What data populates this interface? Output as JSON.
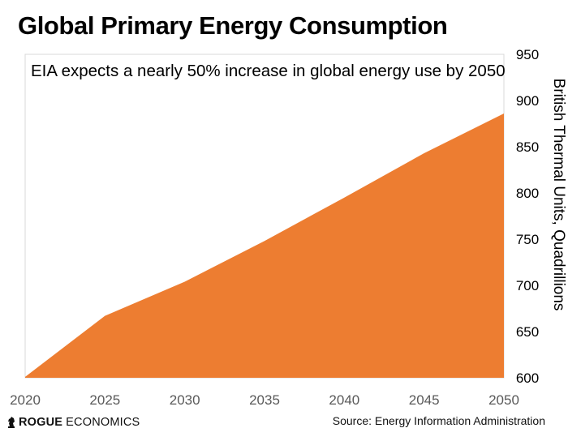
{
  "header": {
    "title": "Global Primary Energy Consumption"
  },
  "footer": {
    "brand_bold": "ROGUE",
    "brand_regular": "ECONOMICS",
    "source": "Source: Energy Information Administration"
  },
  "colors": {
    "area_fill": "#ED7D31",
    "x_tick_color": "#595959",
    "y_tick_color": "#000000",
    "plot_border": "#D9D9D9"
  },
  "chart_data": {
    "type": "area",
    "title": "Global Primary Energy Consumption",
    "subtitle": "EIA expects a nearly 50% increase in global energy use by 2050",
    "xlabel": "",
    "ylabel": "British Thermal Units, Quadrillions",
    "x": [
      2020,
      2025,
      2030,
      2035,
      2040,
      2045,
      2050
    ],
    "values": [
      601,
      667,
      704,
      748,
      795,
      843,
      886
    ],
    "xlim": [
      2020,
      2050
    ],
    "ylim": [
      600,
      950
    ],
    "x_ticks": [
      "2020",
      "2025",
      "2030",
      "2035",
      "2040",
      "2045",
      "2050"
    ],
    "y_ticks": [
      "600",
      "650",
      "700",
      "750",
      "800",
      "850",
      "900",
      "950"
    ],
    "y_axis_side": "right",
    "grid": false,
    "legend": "none"
  }
}
